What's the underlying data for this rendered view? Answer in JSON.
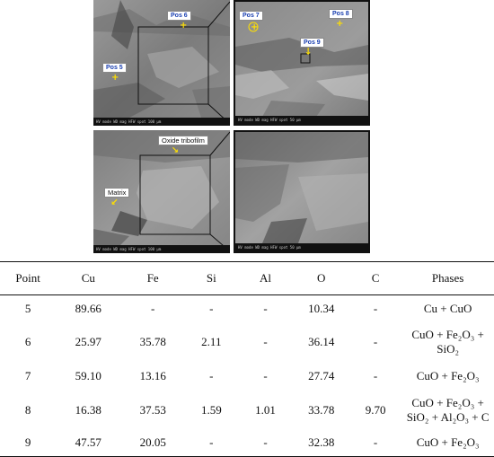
{
  "figure": {
    "panels": [
      {
        "labels": [
          "Pos 5",
          "Pos 6"
        ]
      },
      {
        "labels": [
          "Pos 7",
          "Pos 8",
          "Pos 9"
        ]
      },
      {
        "labels": [
          "Oxide tribofilm",
          "Matrix"
        ]
      },
      {
        "labels": []
      }
    ],
    "sem_info": [
      "HV  mode  WD  mag  HFW  spot  100 µm",
      "HV  mode  WD  mag  HFW  spot  50 µm",
      "HV  mode  WD  mag  HFW  spot  100 µm",
      "HV  mode  WD  mag  HFW  spot  50 µm"
    ]
  },
  "table": {
    "headers": [
      "Point",
      "Cu",
      "Fe",
      "Si",
      "Al",
      "O",
      "C",
      "Phases"
    ],
    "rows": [
      {
        "cells": [
          "5",
          "89.66",
          "-",
          "-",
          "-",
          "10.34",
          "-"
        ],
        "phases": [
          "Cu + CuO"
        ]
      },
      {
        "cells": [
          "6",
          "25.97",
          "35.78",
          "2.11",
          "-",
          "36.14",
          "-"
        ],
        "phases": [
          "CuO + Fe₂O₃ +",
          "SiO₂"
        ]
      },
      {
        "cells": [
          "7",
          "59.10",
          "13.16",
          "-",
          "-",
          "27.74",
          "-"
        ],
        "phases": [
          "CuO + Fe₂O₃"
        ]
      },
      {
        "cells": [
          "8",
          "16.38",
          "37.53",
          "1.59",
          "1.01",
          "33.78",
          "9.70"
        ],
        "phases": [
          "CuO + Fe₂O₃ +",
          "SiO₂ + Al₂O₃ + C"
        ]
      },
      {
        "cells": [
          "9",
          "47.57",
          "20.05",
          "-",
          "-",
          "32.38",
          "-"
        ],
        "phases": [
          "CuO + Fe₂O₃"
        ]
      }
    ]
  }
}
